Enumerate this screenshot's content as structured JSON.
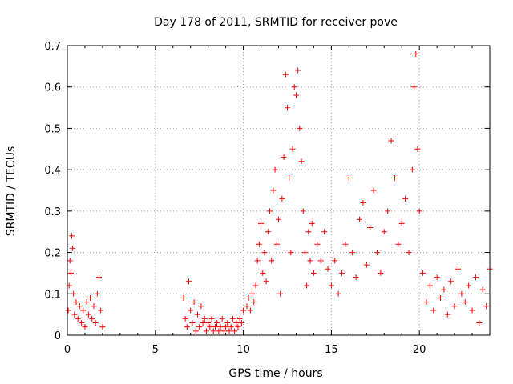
{
  "chart_data": {
    "type": "scatter",
    "title": "Day 178 of 2011, SRMTID for receiver pove",
    "xlabel": "GPS time / hours",
    "ylabel": "SRMTID / TECUs",
    "xlim": [
      0,
      24
    ],
    "ylim": [
      0,
      0.7
    ],
    "xticks": [
      "0",
      "5",
      "10",
      "15",
      "20"
    ],
    "yticks": [
      "0",
      "0.1",
      "0.2",
      "0.3",
      "0.4",
      "0.5",
      "0.6",
      "0.7"
    ],
    "grid": true,
    "marker": "plus",
    "color": "#ff0000",
    "points": [
      [
        0.05,
        0.06
      ],
      [
        0.1,
        0.12
      ],
      [
        0.15,
        0.18
      ],
      [
        0.2,
        0.15
      ],
      [
        0.25,
        0.24
      ],
      [
        0.3,
        0.21
      ],
      [
        0.35,
        0.1
      ],
      [
        0.4,
        0.05
      ],
      [
        0.5,
        0.08
      ],
      [
        0.6,
        0.04
      ],
      [
        0.7,
        0.07
      ],
      [
        0.8,
        0.03
      ],
      [
        0.9,
        0.06
      ],
      [
        1.0,
        0.02
      ],
      [
        1.1,
        0.08
      ],
      [
        1.2,
        0.05
      ],
      [
        1.3,
        0.09
      ],
      [
        1.4,
        0.04
      ],
      [
        1.5,
        0.07
      ],
      [
        1.6,
        0.03
      ],
      [
        1.7,
        0.1
      ],
      [
        1.8,
        0.14
      ],
      [
        1.9,
        0.06
      ],
      [
        2.0,
        0.02
      ],
      [
        6.6,
        0.09
      ],
      [
        6.7,
        0.04
      ],
      [
        6.8,
        0.02
      ],
      [
        6.9,
        0.13
      ],
      [
        7.0,
        0.06
      ],
      [
        7.1,
        0.03
      ],
      [
        7.2,
        0.08
      ],
      [
        7.3,
        0.01
      ],
      [
        7.4,
        0.05
      ],
      [
        7.5,
        0.02
      ],
      [
        7.6,
        0.07
      ],
      [
        7.7,
        0.03
      ],
      [
        7.8,
        0.04
      ],
      [
        7.9,
        0.01
      ],
      [
        8.0,
        0.03
      ],
      [
        8.1,
        0.02
      ],
      [
        8.2,
        0.04
      ],
      [
        8.3,
        0.01
      ],
      [
        8.4,
        0.02
      ],
      [
        8.5,
        0.03
      ],
      [
        8.6,
        0.01
      ],
      [
        8.7,
        0.02
      ],
      [
        8.8,
        0.04
      ],
      [
        8.9,
        0.01
      ],
      [
        9.0,
        0.02
      ],
      [
        9.1,
        0.03
      ],
      [
        9.2,
        0.01
      ],
      [
        9.3,
        0.02
      ],
      [
        9.4,
        0.04
      ],
      [
        9.5,
        0.01
      ],
      [
        9.6,
        0.03
      ],
      [
        9.7,
        0.02
      ],
      [
        9.8,
        0.04
      ],
      [
        9.9,
        0.03
      ],
      [
        10.0,
        0.06
      ],
      [
        10.2,
        0.07
      ],
      [
        10.3,
        0.09
      ],
      [
        10.4,
        0.06
      ],
      [
        10.5,
        0.1
      ],
      [
        10.6,
        0.08
      ],
      [
        10.7,
        0.12
      ],
      [
        10.8,
        0.18
      ],
      [
        10.9,
        0.22
      ],
      [
        11.0,
        0.27
      ],
      [
        11.1,
        0.15
      ],
      [
        11.2,
        0.2
      ],
      [
        11.3,
        0.13
      ],
      [
        11.4,
        0.25
      ],
      [
        11.5,
        0.3
      ],
      [
        11.6,
        0.18
      ],
      [
        11.7,
        0.35
      ],
      [
        11.8,
        0.4
      ],
      [
        11.9,
        0.22
      ],
      [
        12.0,
        0.28
      ],
      [
        12.1,
        0.1
      ],
      [
        12.2,
        0.33
      ],
      [
        12.3,
        0.43
      ],
      [
        12.4,
        0.63
      ],
      [
        12.5,
        0.55
      ],
      [
        12.6,
        0.38
      ],
      [
        12.7,
        0.2
      ],
      [
        12.8,
        0.45
      ],
      [
        12.9,
        0.6
      ],
      [
        13.0,
        0.58
      ],
      [
        13.1,
        0.64
      ],
      [
        13.2,
        0.5
      ],
      [
        13.3,
        0.42
      ],
      [
        13.4,
        0.3
      ],
      [
        13.5,
        0.2
      ],
      [
        13.6,
        0.12
      ],
      [
        13.7,
        0.25
      ],
      [
        13.8,
        0.18
      ],
      [
        13.9,
        0.27
      ],
      [
        14.0,
        0.15
      ],
      [
        14.2,
        0.22
      ],
      [
        14.4,
        0.18
      ],
      [
        14.6,
        0.25
      ],
      [
        14.8,
        0.16
      ],
      [
        15.0,
        0.12
      ],
      [
        15.2,
        0.18
      ],
      [
        15.4,
        0.1
      ],
      [
        15.6,
        0.15
      ],
      [
        15.8,
        0.22
      ],
      [
        16.0,
        0.38
      ],
      [
        16.2,
        0.2
      ],
      [
        16.4,
        0.14
      ],
      [
        16.6,
        0.28
      ],
      [
        16.8,
        0.32
      ],
      [
        17.0,
        0.17
      ],
      [
        17.2,
        0.26
      ],
      [
        17.4,
        0.35
      ],
      [
        17.6,
        0.2
      ],
      [
        17.8,
        0.15
      ],
      [
        18.0,
        0.25
      ],
      [
        18.2,
        0.3
      ],
      [
        18.4,
        0.47
      ],
      [
        18.6,
        0.38
      ],
      [
        18.8,
        0.22
      ],
      [
        19.0,
        0.27
      ],
      [
        19.2,
        0.33
      ],
      [
        19.4,
        0.2
      ],
      [
        19.6,
        0.4
      ],
      [
        19.7,
        0.6
      ],
      [
        19.8,
        0.68
      ],
      [
        19.9,
        0.45
      ],
      [
        20.0,
        0.3
      ],
      [
        20.2,
        0.15
      ],
      [
        20.4,
        0.08
      ],
      [
        20.6,
        0.12
      ],
      [
        20.8,
        0.06
      ],
      [
        21.0,
        0.14
      ],
      [
        21.2,
        0.09
      ],
      [
        21.4,
        0.11
      ],
      [
        21.6,
        0.05
      ],
      [
        21.8,
        0.13
      ],
      [
        22.0,
        0.07
      ],
      [
        22.2,
        0.16
      ],
      [
        22.4,
        0.1
      ],
      [
        22.6,
        0.08
      ],
      [
        22.8,
        0.12
      ],
      [
        23.0,
        0.06
      ],
      [
        23.2,
        0.14
      ],
      [
        23.4,
        0.03
      ],
      [
        23.6,
        0.11
      ],
      [
        23.8,
        0.07
      ],
      [
        24.0,
        0.16
      ]
    ]
  }
}
